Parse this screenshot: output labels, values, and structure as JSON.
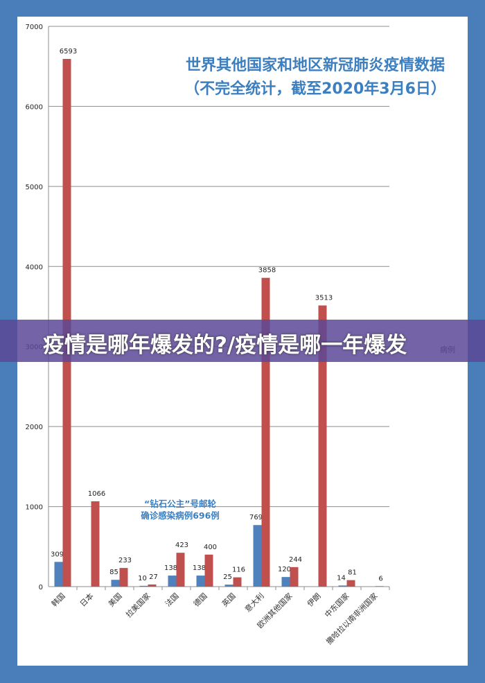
{
  "headline": "疫情是哪年爆发的?/疫情是哪一年爆发",
  "chart_data": {
    "type": "bar",
    "title": [
      "世界其他国家和地区新冠肺炎疫情数据",
      "（不完全统计，截至2020年3月6日）"
    ],
    "categories": [
      "韩国",
      "日本",
      "美国",
      "拉美国家",
      "法国",
      "德国",
      "英国",
      "意大利",
      "欧洲其他国家",
      "伊朗",
      "中东国家",
      "撒哈拉以南非洲国家"
    ],
    "series": [
      {
        "color": "#4f81bd",
        "values": [
          309,
          null,
          85,
          10,
          138,
          138,
          25,
          769,
          120,
          null,
          14,
          null
        ]
      },
      {
        "color": "#c0504d",
        "values": [
          6593,
          1066,
          233,
          27,
          423,
          400,
          116,
          3858,
          244,
          3513,
          81,
          6
        ]
      }
    ],
    "ylim": [
      0,
      7000
    ],
    "yticks": [
      0,
      1000,
      2000,
      3000,
      4000,
      5000,
      6000,
      7000
    ],
    "grid": true,
    "annotation": [
      "“钻石公主”号邮轮",
      "确诊感染病例696例"
    ],
    "legend_partial": "病例"
  }
}
